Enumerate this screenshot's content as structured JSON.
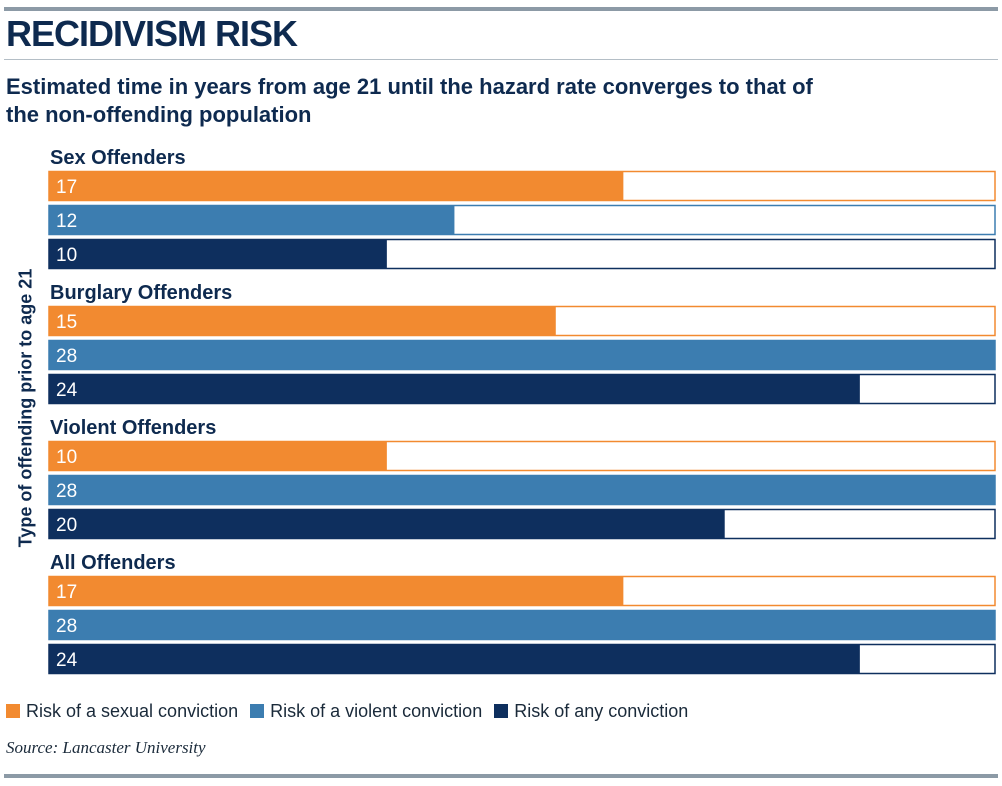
{
  "header": {
    "title": "RECIDIVISM RISK",
    "subtitle": "Estimated time in years from age 21 until the hazard rate converges to that of the non-offending population"
  },
  "source": "Source: Lancaster University",
  "colors": {
    "sexual": "#f28a30",
    "violent": "#3c7db0",
    "any": "#0e2f5e",
    "text": "#0e2a4f"
  },
  "chart_data": {
    "type": "bar",
    "orientation": "horizontal",
    "title": "RECIDIVISM RISK",
    "subtitle": "Estimated time in years from age 21 until the hazard rate converges to that of the non-offending population",
    "ylabel": "Type of offending prior to age 21",
    "xlabel": "",
    "xlim": [
      0,
      28
    ],
    "grid": false,
    "legend_position": "bottom",
    "categories": [
      "Sex Offenders",
      "Burglary Offenders",
      "Violent Offenders",
      "All Offenders"
    ],
    "series": [
      {
        "name": "Risk of a sexual conviction",
        "color": "#f28a30",
        "values": [
          17,
          15,
          10,
          17
        ]
      },
      {
        "name": "Risk of a violent conviction",
        "color": "#3c7db0",
        "values": [
          12,
          28,
          28,
          28
        ]
      },
      {
        "name": "Risk of any conviction",
        "color": "#0e2f5e",
        "values": [
          10,
          24,
          20,
          24
        ]
      }
    ]
  }
}
